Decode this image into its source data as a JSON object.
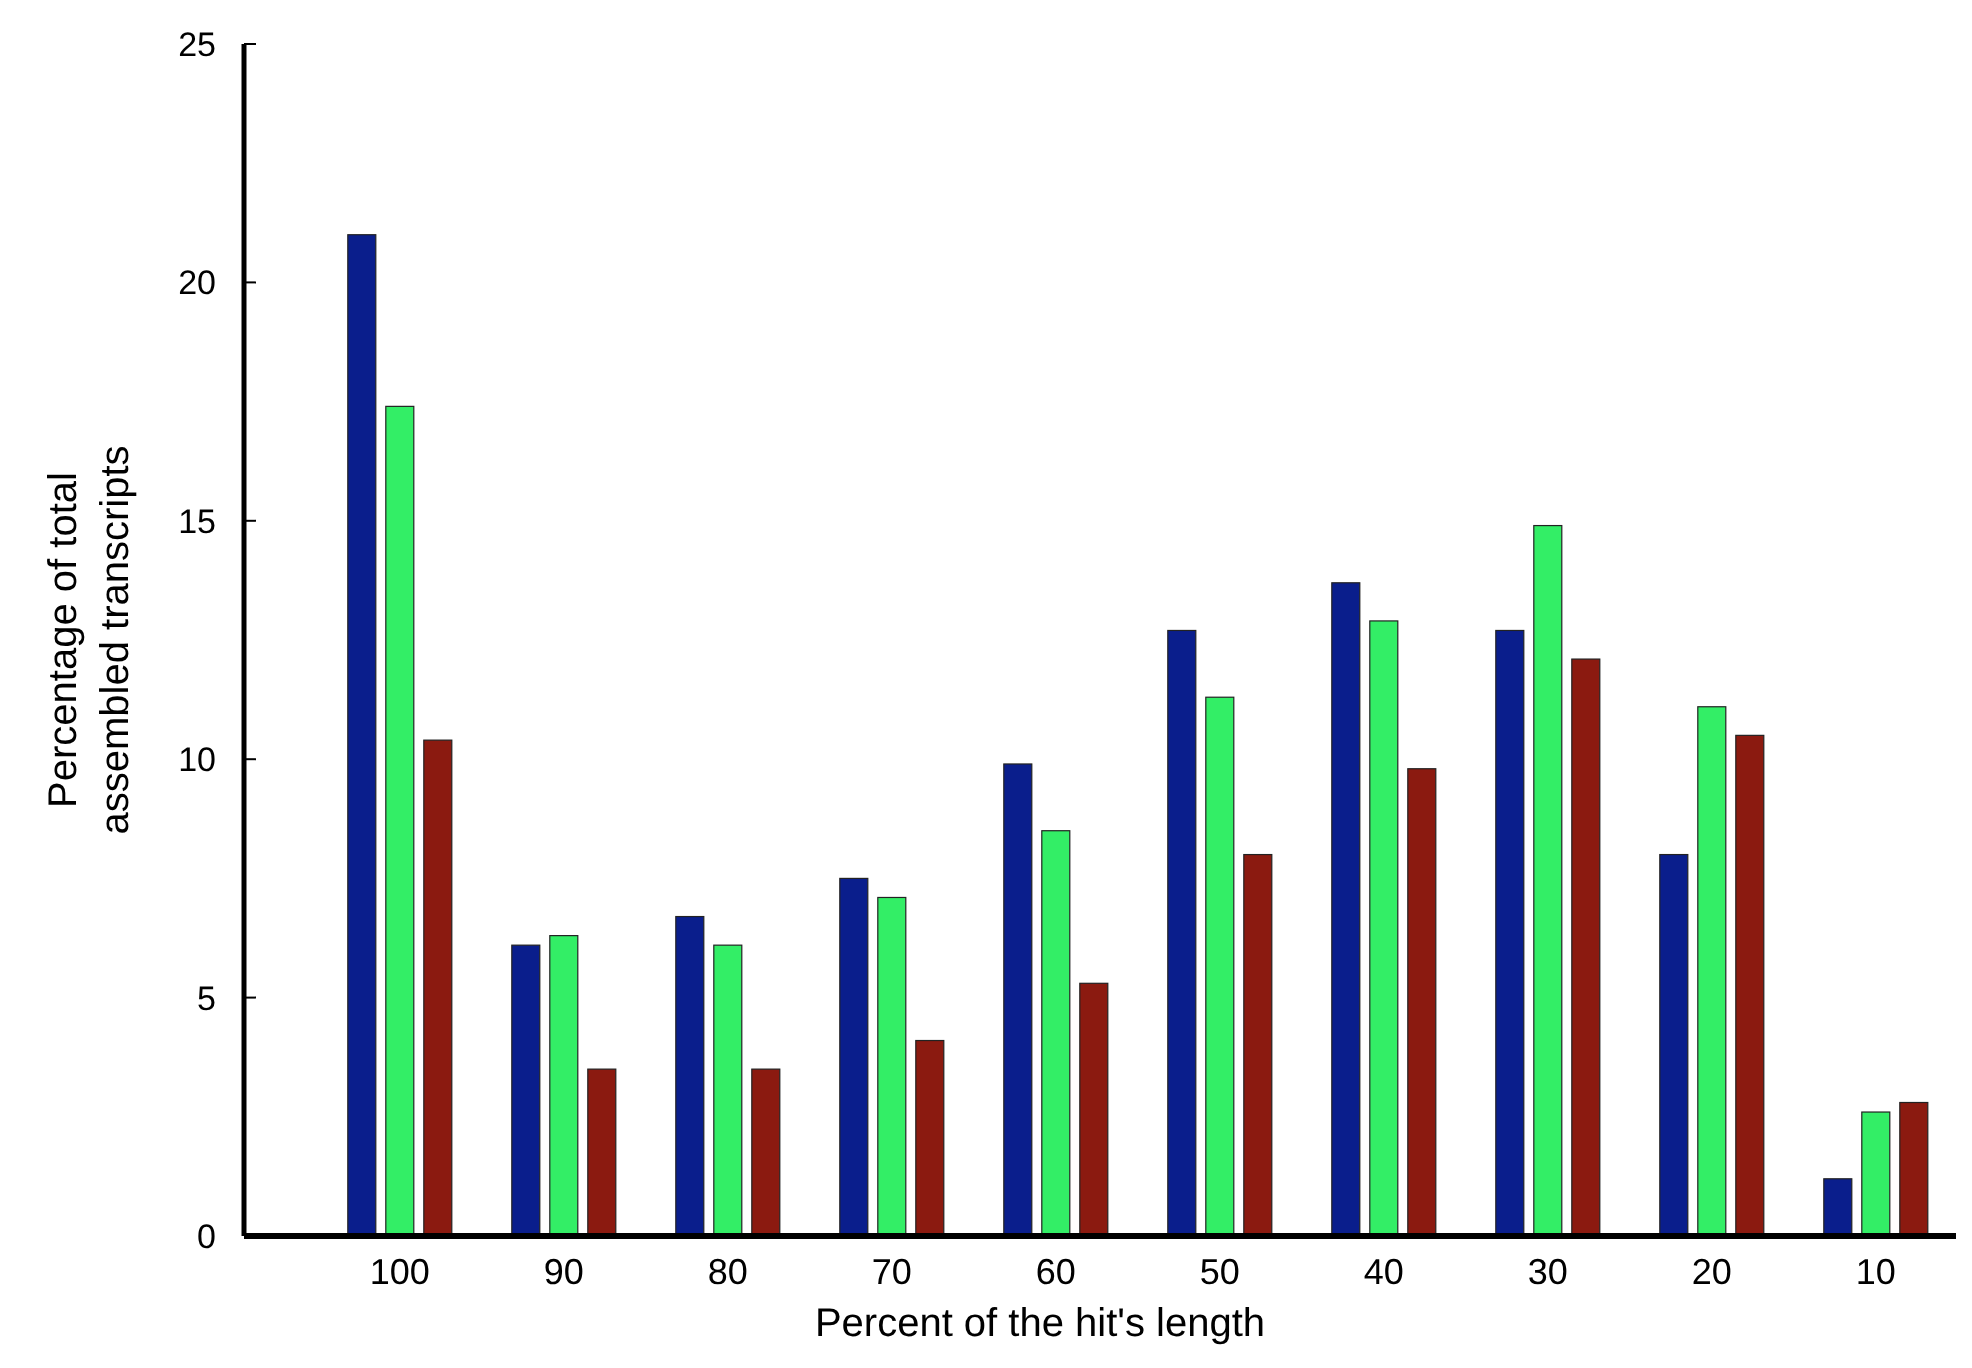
{
  "chart_data": {
    "type": "bar",
    "xlabel": "Percent of the hit's length",
    "ylabel": "Percentage of total\nassembled transcripts",
    "categories": [
      "100",
      "90",
      "80",
      "70",
      "60",
      "50",
      "40",
      "30",
      "20",
      "10"
    ],
    "series": [
      {
        "color": "#0a1e8c",
        "values": [
          21.0,
          6.1,
          6.7,
          7.5,
          9.9,
          12.7,
          13.7,
          12.7,
          8.0,
          1.2
        ]
      },
      {
        "color": "#33ee66",
        "values": [
          17.4,
          6.3,
          6.1,
          7.1,
          8.5,
          11.3,
          12.9,
          14.9,
          11.1,
          2.6
        ]
      },
      {
        "color": "#8b1a10",
        "values": [
          10.4,
          3.5,
          3.5,
          4.1,
          5.3,
          8.0,
          9.8,
          12.1,
          10.5,
          2.8
        ]
      }
    ],
    "ylim": [
      0,
      25
    ],
    "yticks": [
      0,
      5,
      10,
      15,
      20,
      25
    ],
    "grid": false
  }
}
